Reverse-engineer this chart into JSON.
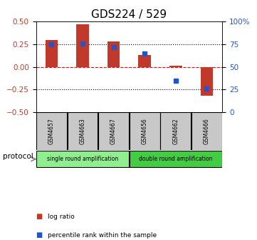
{
  "title": "GDS224 / 529",
  "samples": [
    "GSM4657",
    "GSM4663",
    "GSM4667",
    "GSM4656",
    "GSM4662",
    "GSM4666"
  ],
  "log_ratios": [
    0.3,
    0.47,
    0.28,
    0.13,
    0.01,
    -0.32
  ],
  "percentile_ranks": [
    75,
    76,
    72,
    65,
    35,
    26
  ],
  "ylim_left": [
    -0.5,
    0.5
  ],
  "ylim_right": [
    0,
    100
  ],
  "yticks_left": [
    -0.5,
    -0.25,
    0,
    0.25,
    0.5
  ],
  "yticks_right": [
    0,
    25,
    50,
    75,
    100
  ],
  "ytick_labels_right": [
    "0",
    "25",
    "50",
    "75",
    "100%"
  ],
  "dotted_lines": [
    -0.25,
    0.25
  ],
  "bar_color": "#c0392b",
  "dot_color": "#2255cc",
  "protocol_groups": [
    {
      "label": "single round amplification",
      "start": 0,
      "end": 2,
      "color": "#90ee90"
    },
    {
      "label": "double round amplification",
      "start": 3,
      "end": 5,
      "color": "#44cc44"
    }
  ],
  "protocol_label": "protocol",
  "legend_items": [
    {
      "label": "log ratio",
      "color": "#c0392b"
    },
    {
      "label": "percentile rank within the sample",
      "color": "#2255cc"
    }
  ],
  "bar_width": 0.4,
  "title_fontsize": 11,
  "tick_fontsize": 7.5
}
